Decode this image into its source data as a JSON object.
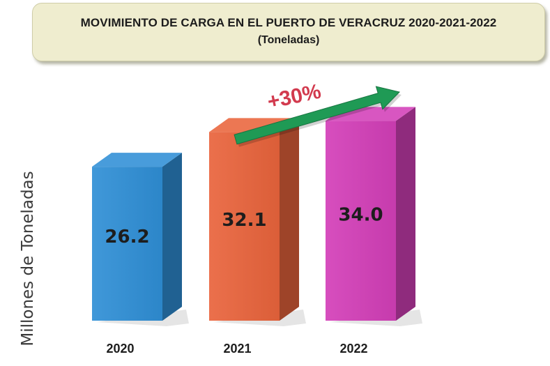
{
  "title": "MOVIMIENTO DE CARGA EN EL PUERTO DE VERACRUZ 2020-2021-2022",
  "subtitle": "(Toneladas)",
  "chart_data": {
    "type": "bar",
    "categories": [
      "2020",
      "2021",
      "2022"
    ],
    "values": [
      26.2,
      32.1,
      34.0
    ],
    "value_labels": [
      "26.2",
      "32.1",
      "34.0"
    ],
    "ylabel": "Millones de Toneladas",
    "bar_colors": [
      "#2f8fd6",
      "#e9643c",
      "#d33fb8"
    ],
    "annotation": {
      "text": "+30%",
      "color": "#d23a4e",
      "arrow_color": "#1f9a55"
    }
  }
}
